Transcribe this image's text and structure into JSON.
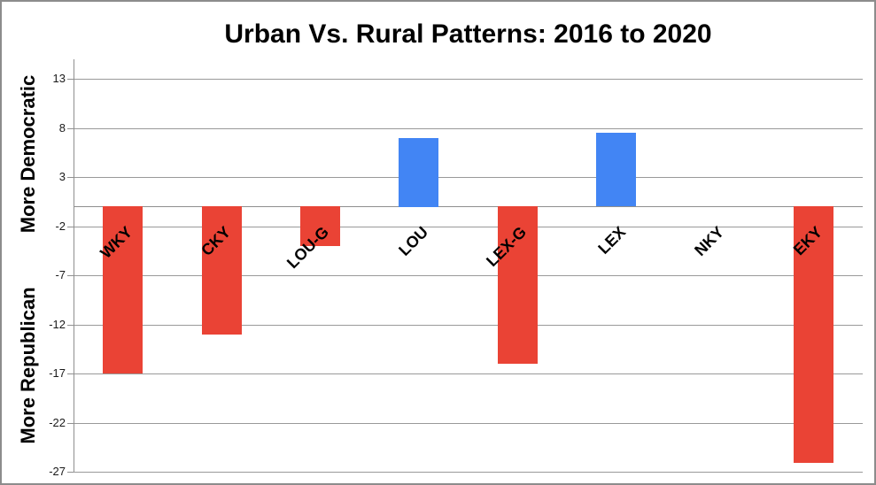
{
  "title": "Urban Vs. Rural Patterns: 2016 to 2020",
  "y_axis": {
    "label_top": "More Democratic",
    "label_bottom": "More Republican"
  },
  "chart_data": {
    "type": "bar",
    "title": "Urban Vs. Rural Patterns: 2016 to 2020",
    "categories": [
      "WKY",
      "CKY",
      "LOU-G",
      "LOU",
      "LEX-G",
      "LEX",
      "NKY",
      "EKY"
    ],
    "values": [
      -17,
      -13.1,
      -4.1,
      7,
      -16,
      7.5,
      0,
      -26.1
    ],
    "bar_colors": [
      "#EA4335",
      "#EA4335",
      "#EA4335",
      "#4285F4",
      "#EA4335",
      "#4285F4",
      "#EA4335",
      "#EA4335"
    ],
    "ylim": [
      -27,
      15
    ],
    "yticks": [
      13,
      8,
      3,
      -2,
      -7,
      -12,
      -17,
      -22,
      -27
    ],
    "xlabel": "",
    "ylabel_top": "More Democratic",
    "ylabel_bottom": "More Republican",
    "grid": true,
    "legend": false,
    "baseline": 0
  },
  "colors": {
    "democratic_blue": "#4285F4",
    "republican_red": "#EA4335",
    "gridline": "#999999",
    "axis": "#8f8f8f",
    "border": "#8c8c8c",
    "text": "#000000"
  }
}
